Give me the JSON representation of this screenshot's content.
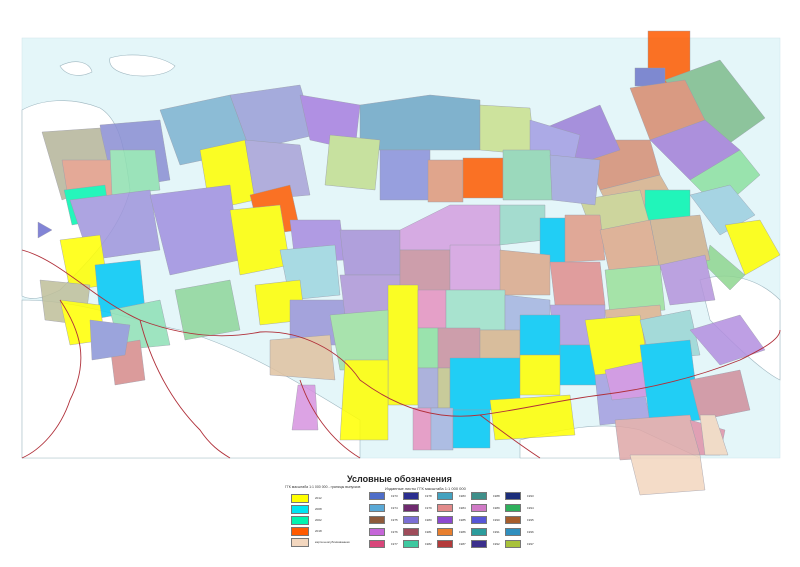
{
  "map": {
    "ocean_color": "#e4f6f9",
    "land_color": "#ffffff",
    "border_color": "#b0303a",
    "sheet_labels_note": "illegible"
  },
  "legend": {
    "title": "Условные обозначения",
    "left_heading": "ГГК масштаба 1:1 000 000 - границы выпусков",
    "left_items": [
      {
        "label": "2012",
        "color": "#ffff00"
      },
      {
        "label": "2008",
        "color": "#00e5f2"
      },
      {
        "label": "2002",
        "color": "#00f5b0"
      },
      {
        "label": "2018",
        "color": "#ff5a00"
      },
      {
        "label": "карта неопубликованная",
        "color": "#f3d7bf"
      }
    ],
    "right_heading": "Изданные листы ГГК масштаба 1:1 000 000",
    "year_items": [
      {
        "label": "1973",
        "color": "#4f6ec9"
      },
      {
        "label": "1974",
        "color": "#5aa9d6"
      },
      {
        "label": "1975",
        "color": "#8f5a3b"
      },
      {
        "label": "1976",
        "color": "#c566d8"
      },
      {
        "label": "1977",
        "color": "#d8467a"
      },
      {
        "label": "1978",
        "color": "#2b2e8f"
      },
      {
        "label": "1979",
        "color": "#6e2a6e"
      },
      {
        "label": "1980",
        "color": "#7b6fd4"
      },
      {
        "label": "1981",
        "color": "#9f4c5a"
      },
      {
        "label": "1982",
        "color": "#3ec9a0"
      },
      {
        "label": "1983",
        "color": "#43a2c0"
      },
      {
        "label": "1984",
        "color": "#e28a8a"
      },
      {
        "label": "1985",
        "color": "#8c49d0"
      },
      {
        "label": "1986",
        "color": "#e87f2e"
      },
      {
        "label": "1987",
        "color": "#b33a3a"
      },
      {
        "label": "1988",
        "color": "#3f8f8a"
      },
      {
        "label": "1989",
        "color": "#d07ac6"
      },
      {
        "label": "1990",
        "color": "#5656d6"
      },
      {
        "label": "1991",
        "color": "#2c9c9c"
      },
      {
        "label": "1992",
        "color": "#3b2f8c"
      },
      {
        "label": "1993",
        "color": "#1c2e7a"
      },
      {
        "label": "1994",
        "color": "#2eb05c"
      },
      {
        "label": "1995",
        "color": "#a65d2c"
      },
      {
        "label": "1996",
        "color": "#2f8fbf"
      },
      {
        "label": "1997",
        "color": "#a8c23a"
      }
    ]
  }
}
